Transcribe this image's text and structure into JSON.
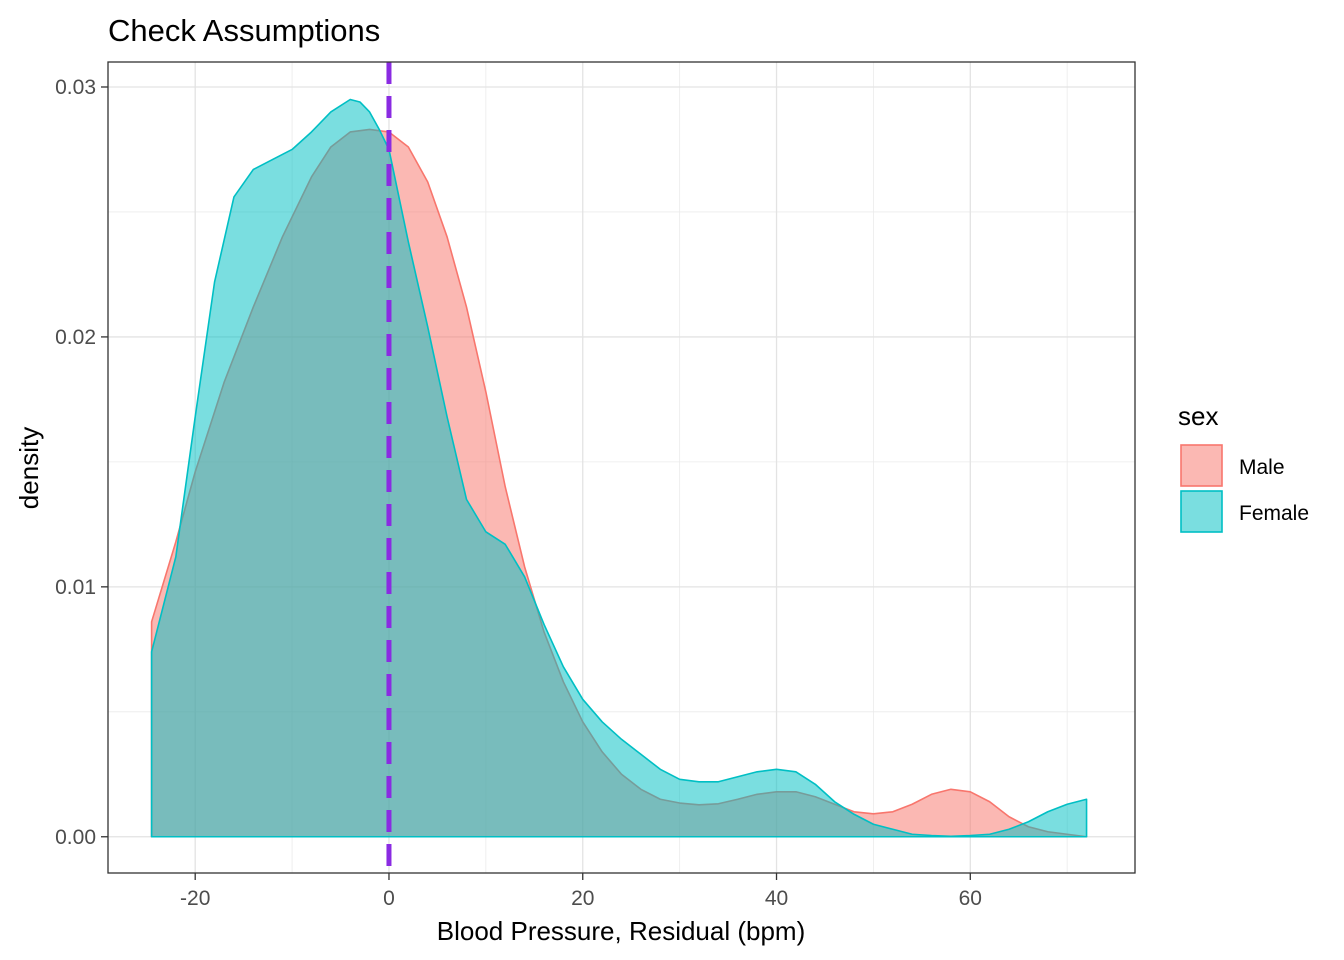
{
  "chart_data": {
    "type": "area",
    "title": "Check Assumptions",
    "xlabel": "Blood Pressure, Residual (bpm)",
    "ylabel": "density",
    "xlim": [
      -29,
      77
    ],
    "ylim": [
      -0.00145,
      0.031
    ],
    "x_ticks": [
      -20,
      0,
      20,
      40,
      60
    ],
    "x_tick_labels": [
      "-20",
      "0",
      "20",
      "40",
      "60"
    ],
    "y_ticks": [
      0,
      0.01,
      0.02,
      0.03
    ],
    "y_tick_labels": [
      "0.00",
      "0.01",
      "0.02",
      "0.03"
    ],
    "grid": true,
    "legend": {
      "title": "sex",
      "position": "right"
    },
    "reference_line": {
      "x": 0,
      "color": "#8A2BE2",
      "style": "dashed"
    },
    "series": [
      {
        "name": "Male",
        "fill": "#F8766D",
        "line": "#F8766D",
        "x": [
          -24.5,
          -22,
          -20,
          -17,
          -14,
          -11,
          -8,
          -6,
          -4,
          -2,
          0,
          2,
          4,
          6,
          8,
          10,
          12,
          14,
          16,
          18,
          20,
          22,
          24,
          26,
          28,
          30,
          32,
          34,
          36,
          38,
          40,
          42,
          44,
          46,
          48,
          50,
          52,
          54,
          56,
          58,
          60,
          62,
          64,
          66,
          68,
          70,
          72
        ],
        "y": [
          0.0086,
          0.0118,
          0.0146,
          0.0182,
          0.0212,
          0.024,
          0.0264,
          0.0276,
          0.0282,
          0.0283,
          0.0282,
          0.0276,
          0.0262,
          0.024,
          0.0212,
          0.0178,
          0.014,
          0.0108,
          0.0082,
          0.0062,
          0.0046,
          0.0034,
          0.0025,
          0.0019,
          0.0015,
          0.00135,
          0.00128,
          0.00132,
          0.0015,
          0.0017,
          0.0018,
          0.0018,
          0.0016,
          0.0013,
          0.001,
          0.00092,
          0.001,
          0.0013,
          0.0017,
          0.0019,
          0.0018,
          0.0014,
          0.0008,
          0.0004,
          0.0002,
          0.0001,
          0.0
        ]
      },
      {
        "name": "Female",
        "fill": "#00BFC4",
        "line": "#00BFC4",
        "x": [
          -24.5,
          -22,
          -20,
          -18,
          -16,
          -14,
          -12,
          -10,
          -8,
          -6,
          -4,
          -3,
          -2,
          -1,
          0,
          2,
          4,
          6,
          8,
          10,
          12,
          14,
          16,
          18,
          20,
          22,
          24,
          26,
          28,
          30,
          32,
          34,
          36,
          38,
          40,
          42,
          44,
          46,
          48,
          50,
          52,
          54,
          56,
          58,
          60,
          62,
          64,
          66,
          68,
          70,
          72
        ],
        "y": [
          0.0074,
          0.0112,
          0.0168,
          0.0222,
          0.0256,
          0.0267,
          0.0271,
          0.0275,
          0.0282,
          0.029,
          0.0295,
          0.0294,
          0.029,
          0.0283,
          0.0275,
          0.0238,
          0.0204,
          0.0168,
          0.0135,
          0.0122,
          0.0117,
          0.0104,
          0.0085,
          0.0068,
          0.0055,
          0.0046,
          0.0039,
          0.0033,
          0.0027,
          0.0023,
          0.0022,
          0.0022,
          0.0024,
          0.0026,
          0.0027,
          0.0026,
          0.0021,
          0.0014,
          0.0009,
          0.0005,
          0.0003,
          0.0001,
          5e-05,
          2e-05,
          5e-05,
          0.0001,
          0.0003,
          0.0006,
          0.001,
          0.0013,
          0.0015
        ]
      }
    ]
  }
}
